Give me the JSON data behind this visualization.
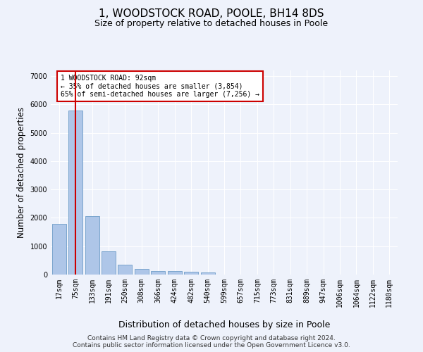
{
  "title": "1, WOODSTOCK ROAD, POOLE, BH14 8DS",
  "subtitle": "Size of property relative to detached houses in Poole",
  "xlabel": "Distribution of detached houses by size in Poole",
  "ylabel": "Number of detached properties",
  "footer_line1": "Contains HM Land Registry data © Crown copyright and database right 2024.",
  "footer_line2": "Contains public sector information licensed under the Open Government Licence v3.0.",
  "bar_labels": [
    "17sqm",
    "75sqm",
    "133sqm",
    "191sqm",
    "250sqm",
    "308sqm",
    "366sqm",
    "424sqm",
    "482sqm",
    "540sqm",
    "599sqm",
    "657sqm",
    "715sqm",
    "773sqm",
    "831sqm",
    "889sqm",
    "947sqm",
    "1006sqm",
    "1064sqm",
    "1122sqm",
    "1180sqm"
  ],
  "bar_values": [
    1780,
    5780,
    2060,
    820,
    340,
    200,
    130,
    115,
    100,
    85,
    0,
    0,
    0,
    0,
    0,
    0,
    0,
    0,
    0,
    0,
    0
  ],
  "bar_color": "#aec6e8",
  "bar_edge_color": "#5a8fc0",
  "highlight_bar_index": 1,
  "highlight_line_color": "#cc0000",
  "annotation_text": "1 WOODSTOCK ROAD: 92sqm\n← 35% of detached houses are smaller (3,854)\n65% of semi-detached houses are larger (7,256) →",
  "annotation_box_color": "#ffffff",
  "annotation_box_edge_color": "#cc0000",
  "ylim": [
    0,
    7200
  ],
  "yticks": [
    0,
    1000,
    2000,
    3000,
    4000,
    5000,
    6000,
    7000
  ],
  "background_color": "#eef2fb",
  "grid_color": "#ffffff",
  "title_fontsize": 11,
  "subtitle_fontsize": 9,
  "axis_label_fontsize": 8.5,
  "tick_fontsize": 7,
  "footer_fontsize": 6.5
}
